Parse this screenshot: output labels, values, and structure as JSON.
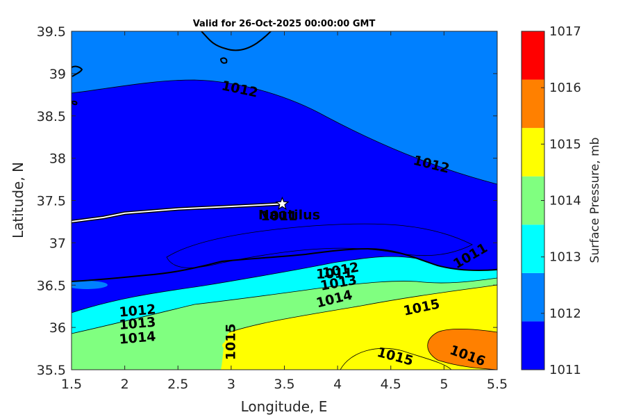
{
  "chart_data": {
    "type": "contour",
    "title": "Valid for 26-Oct-2025 00:00:00 GMT",
    "xlabel": "Longitude, E",
    "ylabel": "Latitude, N",
    "xlim": [
      1.5,
      5.5
    ],
    "ylim": [
      35.5,
      39.5
    ],
    "xticks": [
      "1.5",
      "2",
      "2.5",
      "3",
      "3.5",
      "4",
      "4.5",
      "5",
      "5.5"
    ],
    "yticks": [
      "35.5",
      "36",
      "36.5",
      "37",
      "37.5",
      "38",
      "38.5",
      "39",
      "39.5"
    ],
    "colorbar": {
      "label": "Surface Pressure, mb",
      "ticks": [
        "1011",
        "1012",
        "1013",
        "1014",
        "1015",
        "1016",
        "1017"
      ],
      "colors": [
        "#0000ff",
        "#0080ff",
        "#00ffff",
        "#80ff80",
        "#ffff00",
        "#ff8000",
        "#ff0000"
      ]
    },
    "contour_labels": [
      {
        "text": "1012",
        "lon": 3.08,
        "lat": 38.81,
        "angle": 12
      },
      {
        "text": "1012",
        "lon": 4.88,
        "lat": 37.92,
        "angle": 14
      },
      {
        "text": "1011",
        "lon": 5.25,
        "lat": 36.84,
        "angle": -30
      },
      {
        "text": "1011",
        "lon": 3.97,
        "lat": 36.63,
        "angle": -2
      },
      {
        "text": "1012",
        "lon": 4.03,
        "lat": 36.67,
        "angle": -10
      },
      {
        "text": "1013",
        "lon": 4.01,
        "lat": 36.52,
        "angle": -10
      },
      {
        "text": "1014",
        "lon": 3.97,
        "lat": 36.33,
        "angle": -14
      },
      {
        "text": "1015",
        "lon": 4.79,
        "lat": 36.23,
        "angle": -12
      },
      {
        "text": "1015",
        "lon": 4.54,
        "lat": 35.65,
        "angle": 15
      },
      {
        "text": "1016",
        "lon": 5.22,
        "lat": 35.66,
        "angle": 20
      },
      {
        "text": "1015",
        "lon": 3.0,
        "lat": 35.83,
        "angle": -90
      },
      {
        "text": "1012",
        "lon": 2.12,
        "lat": 36.19,
        "angle": -5
      },
      {
        "text": "1013",
        "lon": 2.12,
        "lat": 36.04,
        "angle": -5
      },
      {
        "text": "1014",
        "lon": 2.12,
        "lat": 35.87,
        "angle": -5
      },
      {
        "text": "1011",
        "lon": 3.45,
        "lat": 37.31,
        "angle": 0
      }
    ],
    "track": [
      [
        1.5,
        37.25
      ],
      [
        1.8,
        37.3
      ],
      [
        2.0,
        37.35
      ],
      [
        2.5,
        37.4
      ],
      [
        3.0,
        37.43
      ],
      [
        3.48,
        37.46
      ]
    ],
    "marker": {
      "label": "Nautilus",
      "lon": 3.48,
      "lat": 37.46
    }
  }
}
